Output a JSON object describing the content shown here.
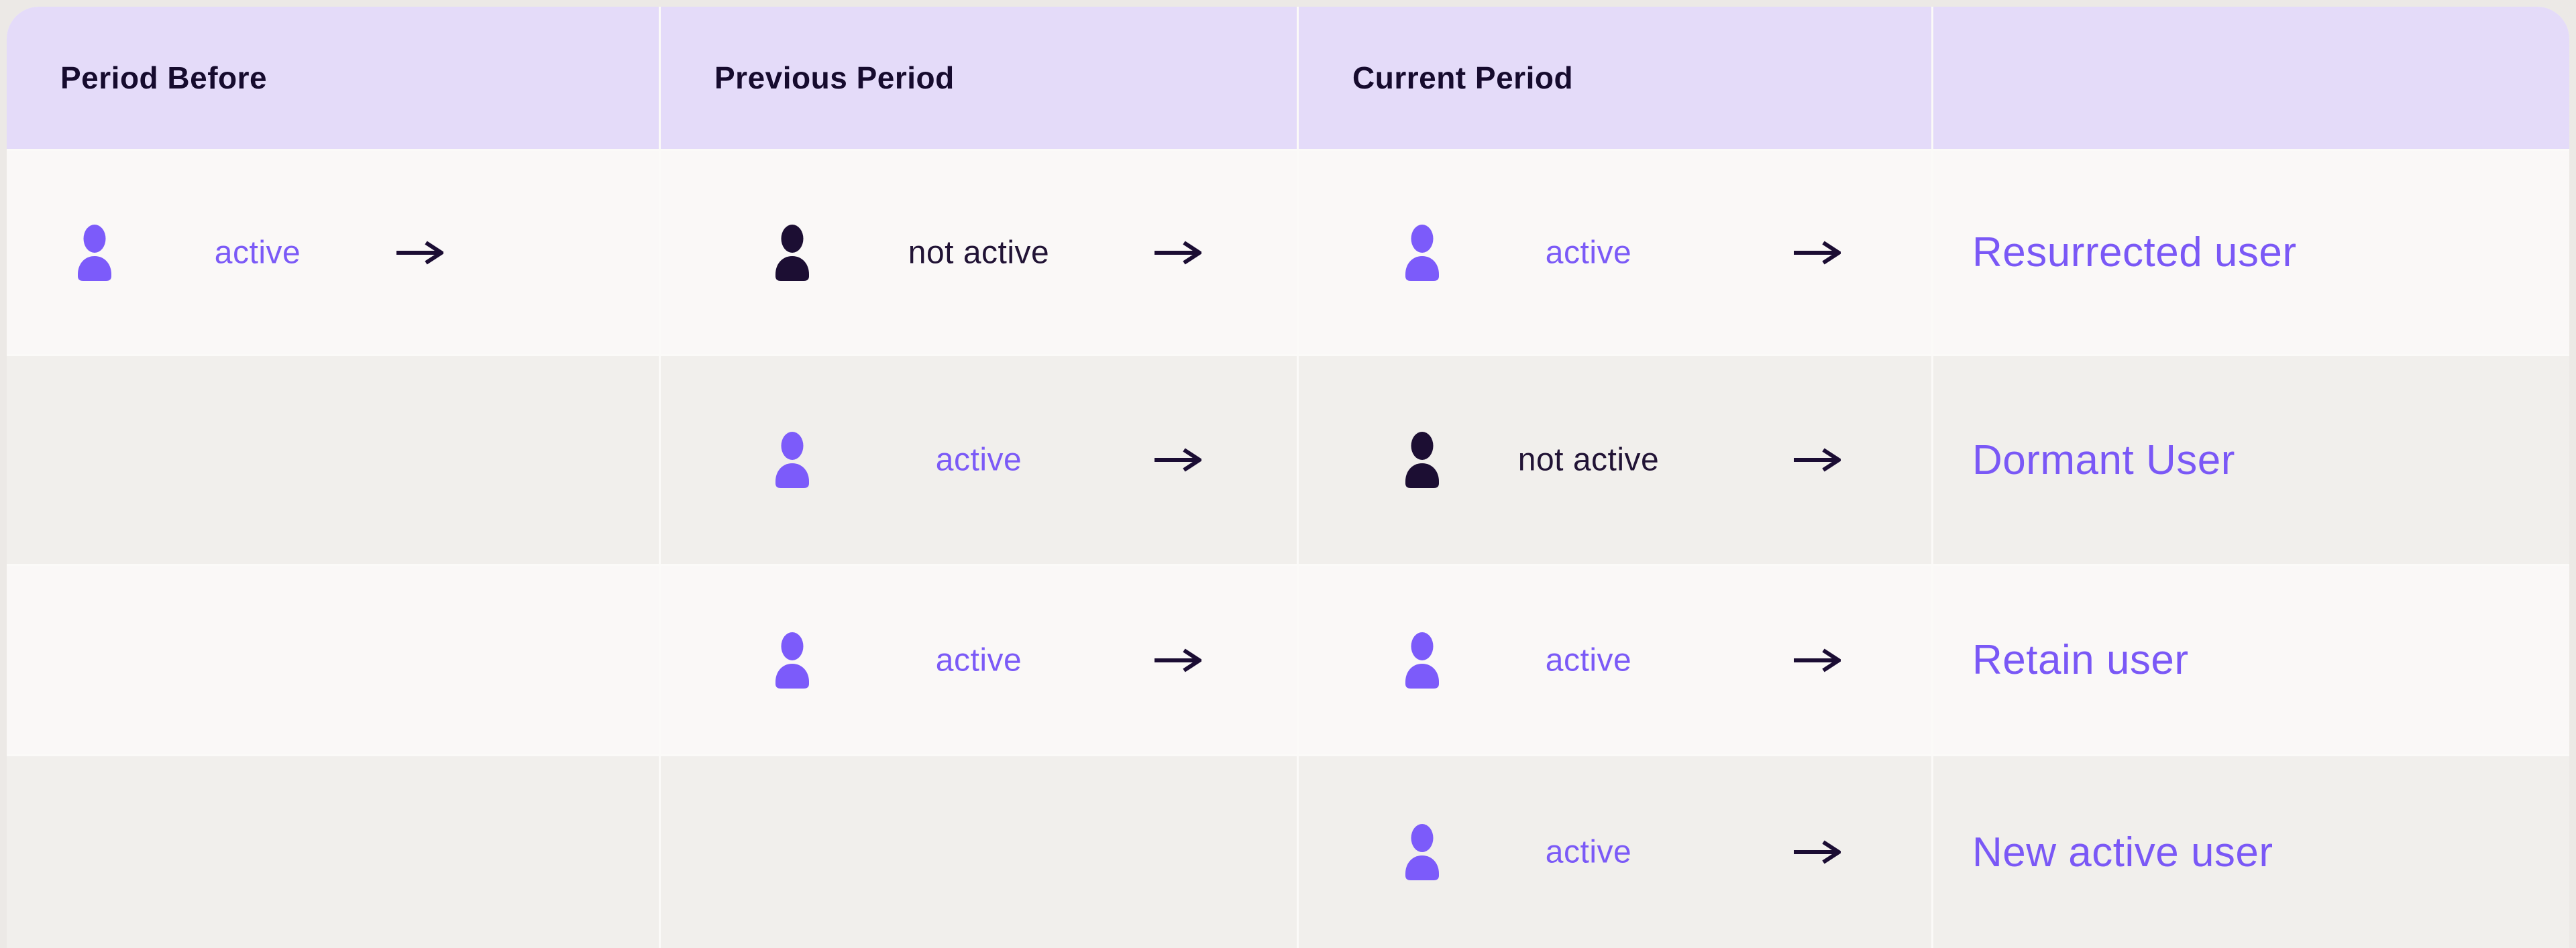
{
  "header": {
    "columns": [
      "Period Before",
      "Previous Period",
      "Current Period",
      ""
    ]
  },
  "rows": [
    {
      "period_before": {
        "state": "active",
        "variant": "active"
      },
      "previous_period": {
        "state": "not active",
        "variant": "inactive"
      },
      "current_period": {
        "state": "active",
        "variant": "active"
      },
      "label": "Resurrected user"
    },
    {
      "period_before": null,
      "previous_period": {
        "state": "active",
        "variant": "active"
      },
      "current_period": {
        "state": "not active",
        "variant": "inactive"
      },
      "label": "Dormant User"
    },
    {
      "period_before": null,
      "previous_period": {
        "state": "active",
        "variant": "active"
      },
      "current_period": {
        "state": "active",
        "variant": "active"
      },
      "label": "Retain user"
    },
    {
      "period_before": null,
      "previous_period": null,
      "current_period": {
        "state": "active",
        "variant": "active"
      },
      "label": "New active user"
    }
  ],
  "icons": {
    "person": "person-icon",
    "arrow": "arrow-right-icon",
    "arrow_glyph": "→"
  },
  "palette": {
    "page_bg": "#ECE9E6",
    "divider": "#FBFAF8",
    "header_bg": "#E4DBF9",
    "header_text": "#160B2E",
    "row_light": "#FAF8F7",
    "row_gray": "#F1EFEC",
    "active_icon": "#7C5BFA",
    "active_text": "#7B5AF7",
    "inactive_icon": "#1C0E33",
    "inactive_text": "#211335",
    "label_text": "#7A58F6",
    "arrow": "#1B0D33"
  }
}
